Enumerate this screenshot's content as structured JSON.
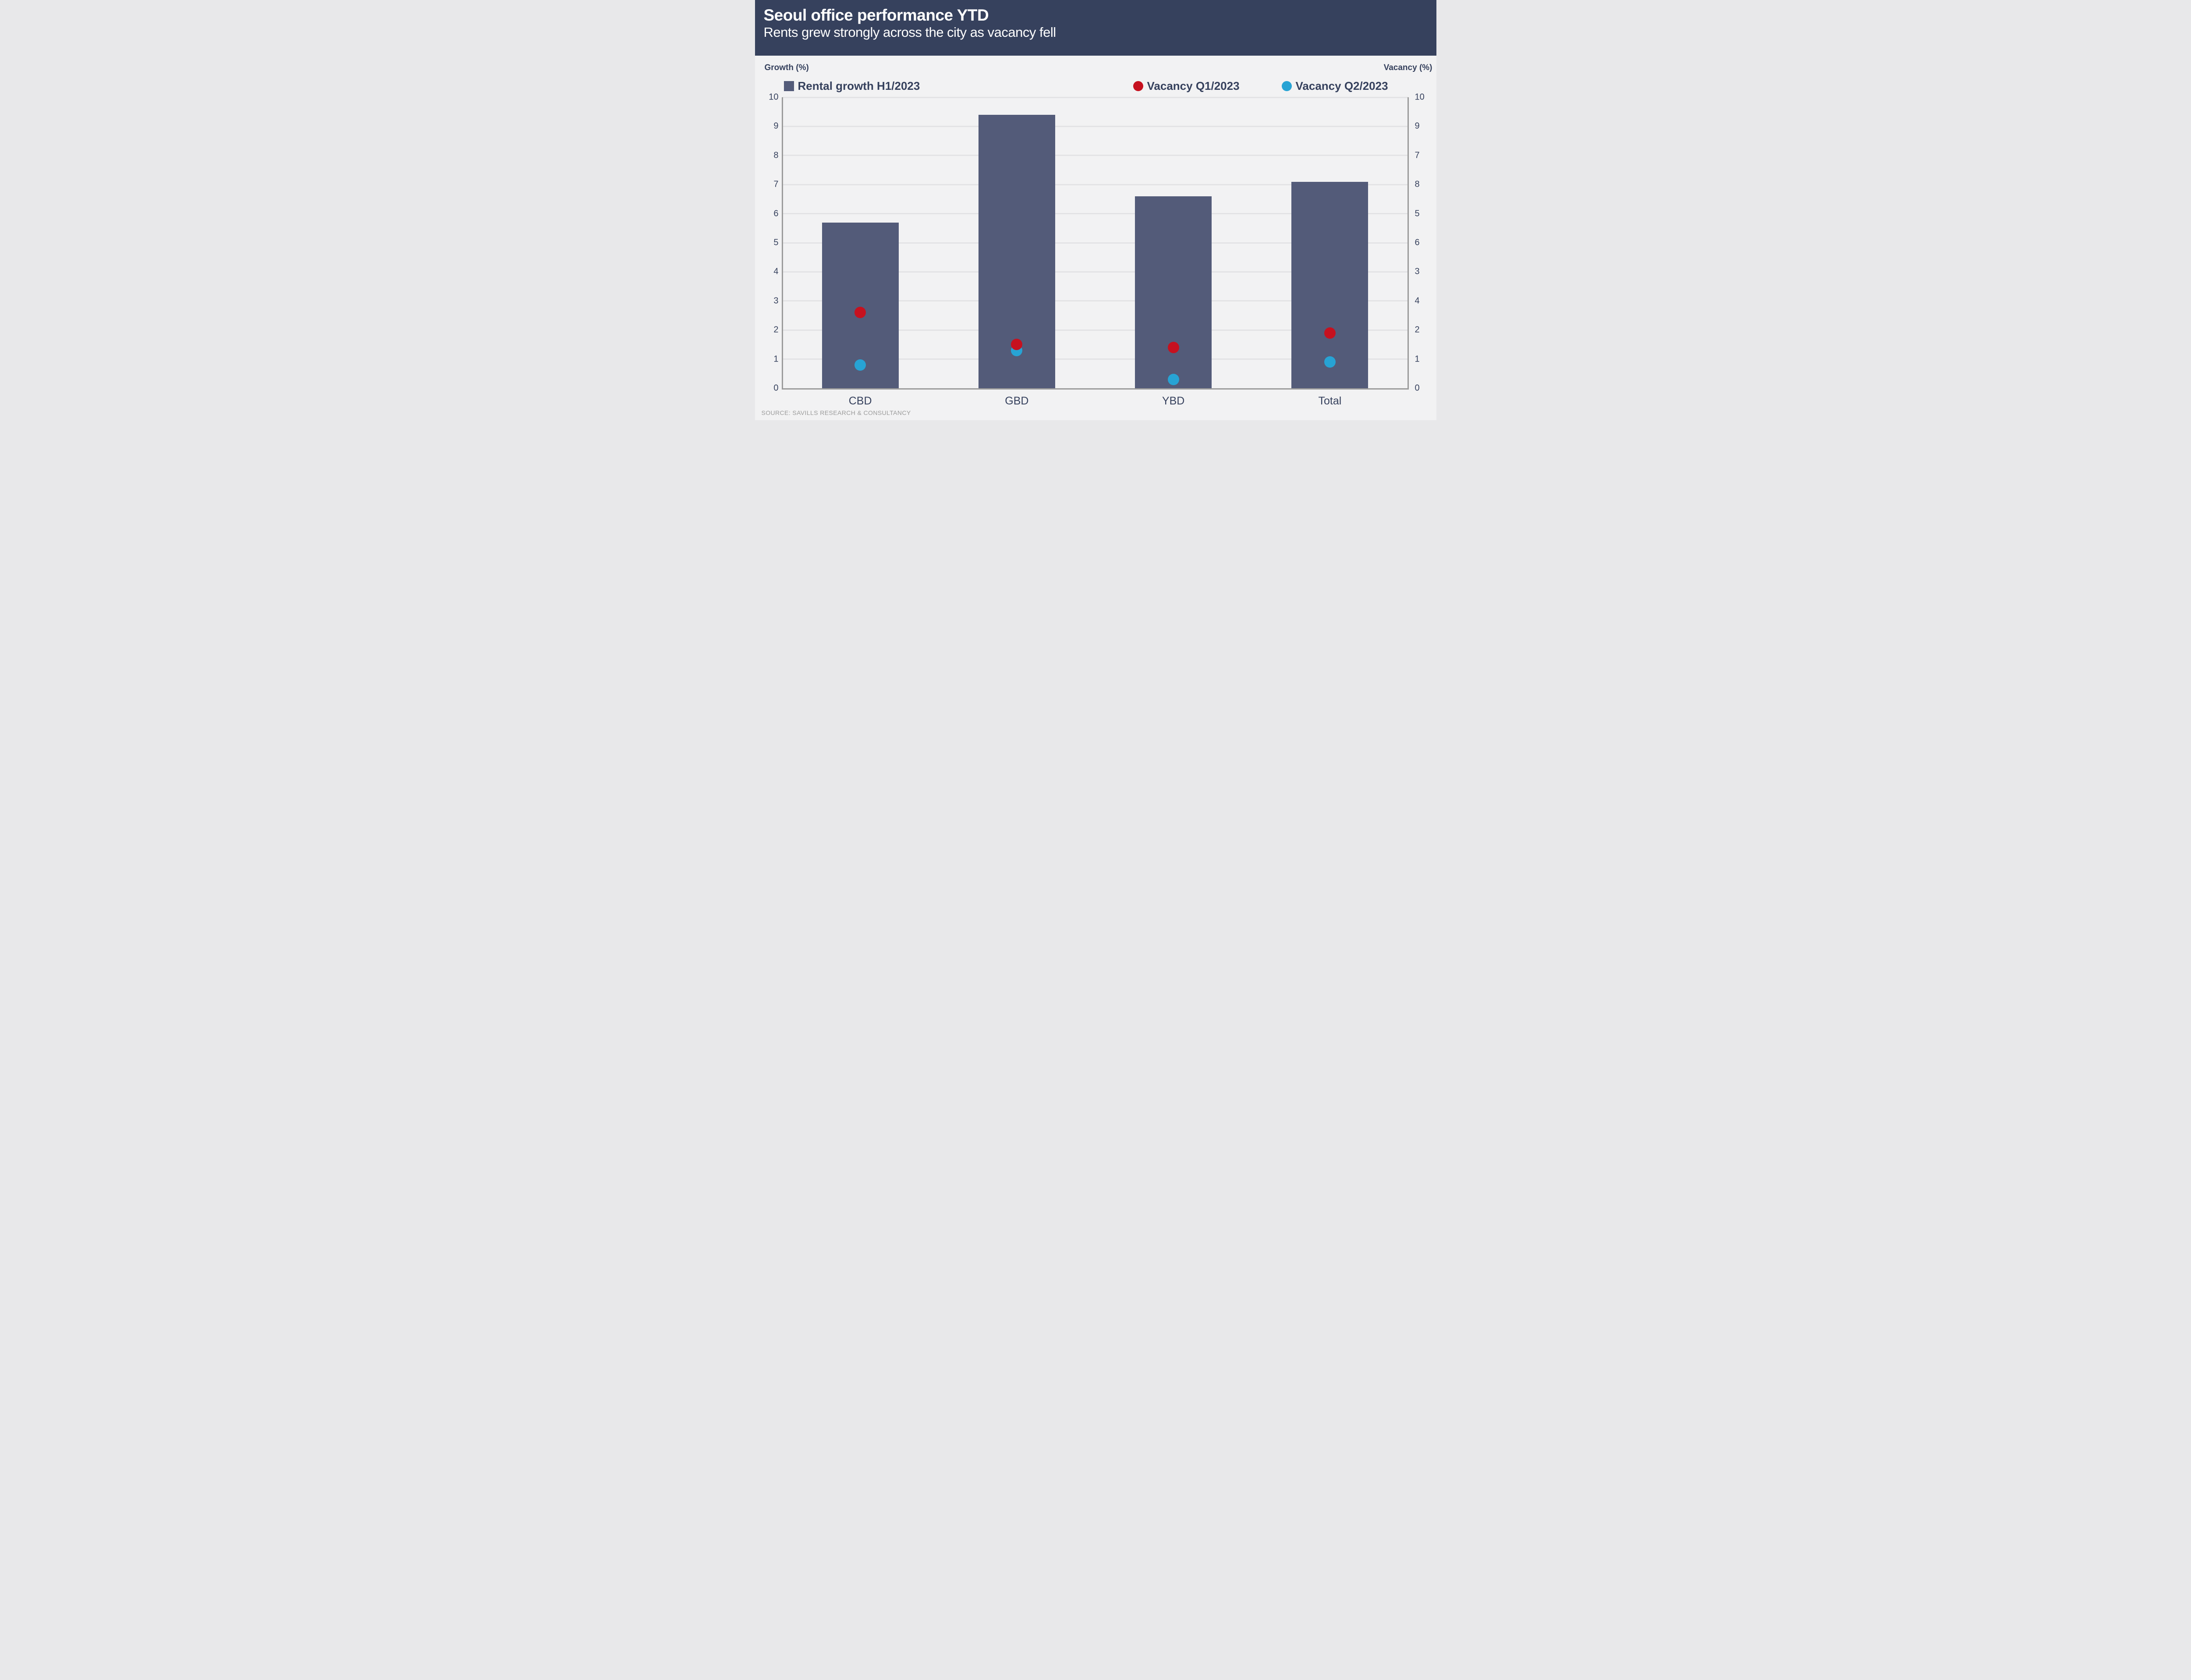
{
  "header": {
    "title": "Seoul office performance YTD",
    "subtitle": "Rents grew strongly across the city as vacancy fell",
    "background": "#36415d"
  },
  "footer": {
    "source": "SOURCE: SAVILLS RESEARCH & CONSULTANCY"
  },
  "colors": {
    "header_navy": "#36415d",
    "text_navy": "#36415d",
    "bar_fill": "#535b79",
    "vacancy_q1_red": "#c6111f",
    "vacancy_q2_blue": "#27a3d4",
    "background": "#f2f2f3",
    "gridline": "#e3e3e5",
    "axis_line": "#9b9b9b",
    "source_gray": "#9b9b9b"
  },
  "chart_data": {
    "type": "bar",
    "title": "Seoul office performance YTD",
    "subtitle": "Rents grew strongly across the city as vacancy fell",
    "categories": [
      "CBD",
      "GBD",
      "YBD",
      "Total"
    ],
    "series": [
      {
        "name": "Rental growth H1/2023",
        "type": "bar",
        "axis": "left",
        "color": "#535b79",
        "values": [
          5.7,
          9.4,
          6.6,
          7.1
        ]
      },
      {
        "name": "Vacancy Q1/2023",
        "type": "scatter",
        "axis": "right",
        "color": "#c6111f",
        "values": [
          2.6,
          1.5,
          1.4,
          1.9
        ]
      },
      {
        "name": "Vacancy Q2/2023",
        "type": "scatter",
        "axis": "right",
        "color": "#27a3d4",
        "values": [
          0.8,
          1.3,
          0.3,
          0.9
        ]
      }
    ],
    "left_axis": {
      "label": "Growth (%)",
      "min": 0,
      "max": 10,
      "tick_labels_top_to_bottom": [
        "10",
        "9",
        "8",
        "7",
        "6",
        "5",
        "4",
        "3",
        "2",
        "1",
        "0"
      ]
    },
    "right_axis": {
      "label": "Vacancy (%)",
      "min": 0,
      "max": 10,
      "tick_labels_top_to_bottom": [
        "10",
        "9",
        "7",
        "8",
        "5",
        "6",
        "3",
        "4",
        "2",
        "1",
        "0"
      ]
    },
    "grid": true,
    "legend_position": "top",
    "note": "scatter values plotted on the shared 0-10 scale; right axis tick labels appear in the scrambled order shown"
  }
}
